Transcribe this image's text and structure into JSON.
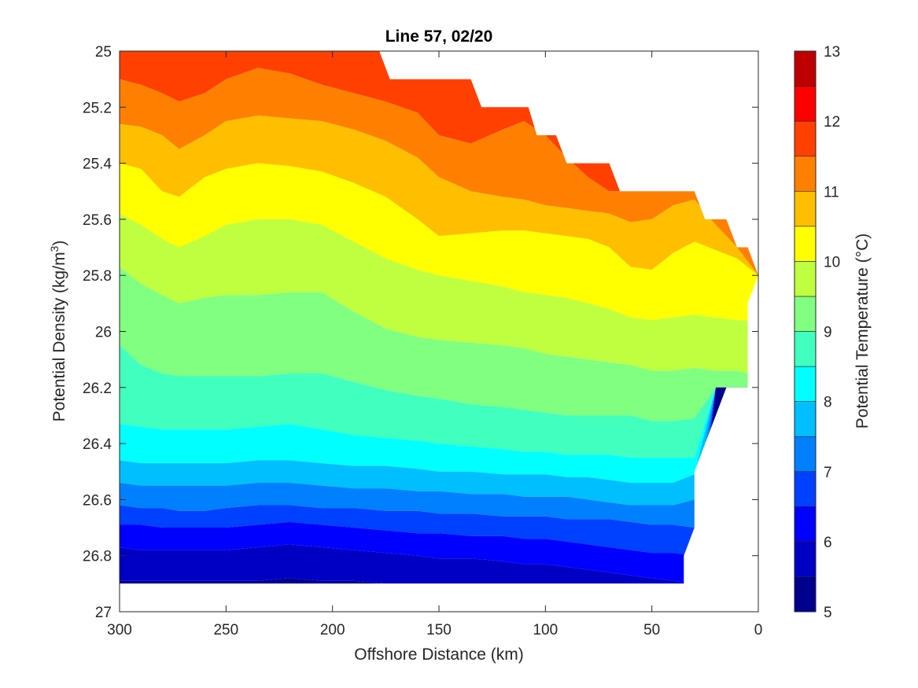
{
  "chart_data": {
    "type": "filled-contour",
    "title": "Line 57, 02/20",
    "xlabel": "Offshore Distance (km)",
    "ylabel_prefix": "Potential Density (kg/m",
    "ylabel_sup": "3",
    "ylabel_suffix": ")",
    "xlim": [
      300,
      0
    ],
    "ylim": [
      25,
      27
    ],
    "y_reversed": true,
    "xticks": [
      300,
      250,
      200,
      150,
      100,
      50,
      0
    ],
    "yticks": [
      25,
      25.2,
      25.4,
      25.6,
      25.8,
      26,
      26.2,
      26.4,
      26.6,
      26.8,
      27
    ],
    "ytick_labels": [
      "25",
      "25.2",
      "25.4",
      "25.6",
      "25.8",
      "26",
      "26.2",
      "26.4",
      "26.6",
      "26.8",
      "27"
    ],
    "grid": false,
    "x_stations": [
      300,
      290,
      280,
      272,
      260,
      250,
      235,
      220,
      205,
      190,
      175,
      160,
      150,
      135,
      120,
      110,
      100,
      90,
      80,
      70,
      60,
      50,
      40,
      30,
      20,
      10,
      5,
      0
    ],
    "contour_lines": [
      {
        "level": 12.0,
        "y": [
          25.0,
          25.0,
          25.0,
          25.0,
          25.0,
          25.0,
          25.0,
          25.0,
          25.0,
          25.0,
          25.0,
          25.0,
          25.0,
          25.0,
          25.0,
          25.0,
          25.0,
          25.0,
          25.0,
          25.0,
          25.0,
          25.0,
          25.0,
          25.0,
          25.0,
          25.0,
          25.0,
          25.0
        ]
      },
      {
        "level": 11.5,
        "y": [
          25.1,
          25.12,
          25.15,
          25.18,
          25.15,
          25.1,
          25.06,
          25.08,
          25.12,
          25.15,
          25.18,
          25.22,
          25.3,
          25.33,
          25.28,
          25.25,
          25.3,
          25.38,
          25.45,
          25.5,
          25.5,
          25.5,
          25.5,
          25.5,
          25.5,
          25.5,
          25.5,
          25.5
        ]
      },
      {
        "level": 11.0,
        "y": [
          25.26,
          25.27,
          25.3,
          25.35,
          25.3,
          25.25,
          25.23,
          25.24,
          25.25,
          25.28,
          25.32,
          25.38,
          25.45,
          25.5,
          25.52,
          25.53,
          25.55,
          25.56,
          25.57,
          25.58,
          25.61,
          25.6,
          25.55,
          25.53,
          25.62,
          25.7,
          25.75,
          25.8
        ]
      },
      {
        "level": 10.5,
        "y": [
          25.4,
          25.42,
          25.5,
          25.52,
          25.45,
          25.42,
          25.4,
          25.41,
          25.43,
          25.47,
          25.52,
          25.6,
          25.66,
          25.65,
          25.64,
          25.64,
          25.65,
          25.66,
          25.67,
          25.7,
          25.77,
          25.78,
          25.72,
          25.68,
          25.71,
          25.74,
          25.77,
          25.8
        ]
      },
      {
        "level": 10.0,
        "y": [
          25.58,
          25.62,
          25.67,
          25.7,
          25.66,
          25.62,
          25.6,
          25.6,
          25.62,
          25.68,
          25.74,
          25.78,
          25.8,
          25.82,
          25.84,
          25.86,
          25.87,
          25.88,
          25.9,
          25.92,
          25.95,
          25.96,
          25.95,
          25.94,
          25.95,
          25.96,
          25.96,
          25.8
        ]
      },
      {
        "level": 9.5,
        "y": [
          25.77,
          25.83,
          25.87,
          25.9,
          25.88,
          25.87,
          25.87,
          25.86,
          25.86,
          25.93,
          25.99,
          26.02,
          26.03,
          26.04,
          26.05,
          26.06,
          26.08,
          26.09,
          26.1,
          26.11,
          26.12,
          26.14,
          26.14,
          26.13,
          26.14,
          26.14,
          26.15,
          26.2
        ]
      },
      {
        "level": 9.0,
        "y": [
          26.05,
          26.12,
          26.15,
          26.16,
          26.16,
          26.16,
          26.16,
          26.15,
          26.15,
          26.18,
          26.21,
          26.23,
          26.24,
          26.26,
          26.27,
          26.28,
          26.29,
          26.3,
          26.3,
          26.3,
          26.3,
          26.32,
          26.32,
          26.31,
          26.2,
          26.2,
          26.2,
          26.2
        ]
      },
      {
        "level": 8.5,
        "y": [
          26.33,
          26.34,
          26.35,
          26.35,
          26.35,
          26.35,
          26.34,
          26.33,
          26.35,
          26.37,
          26.38,
          26.39,
          26.4,
          26.41,
          26.42,
          26.43,
          26.43,
          26.44,
          26.44,
          26.44,
          26.45,
          26.45,
          26.45,
          26.45,
          26.2,
          26.2,
          26.2,
          26.2
        ]
      },
      {
        "level": 8.0,
        "y": [
          26.46,
          26.47,
          26.47,
          26.47,
          26.47,
          26.47,
          26.46,
          26.46,
          26.47,
          26.48,
          26.48,
          26.49,
          26.5,
          26.5,
          26.51,
          26.51,
          26.51,
          26.52,
          26.52,
          26.53,
          26.54,
          26.54,
          26.54,
          26.51,
          26.2,
          26.2,
          26.2,
          26.2
        ]
      },
      {
        "level": 7.5,
        "y": [
          26.54,
          26.55,
          26.55,
          26.55,
          26.55,
          26.55,
          26.54,
          26.54,
          26.55,
          26.56,
          26.56,
          26.57,
          26.57,
          26.58,
          26.58,
          26.59,
          26.59,
          26.59,
          26.6,
          26.61,
          26.62,
          26.62,
          26.62,
          26.6,
          26.2,
          26.2,
          26.2,
          26.2
        ]
      },
      {
        "level": 7.0,
        "y": [
          26.62,
          26.63,
          26.63,
          26.64,
          26.64,
          26.63,
          26.62,
          26.62,
          26.63,
          26.63,
          26.64,
          26.64,
          26.65,
          26.65,
          26.66,
          26.66,
          26.66,
          26.67,
          26.67,
          26.67,
          26.68,
          26.69,
          26.69,
          26.7,
          26.2,
          26.2,
          26.2,
          26.2
        ]
      },
      {
        "level": 6.5,
        "y": [
          26.69,
          26.69,
          26.7,
          26.7,
          26.7,
          26.7,
          26.69,
          26.68,
          26.69,
          26.7,
          26.71,
          26.72,
          26.72,
          26.73,
          26.73,
          26.74,
          26.74,
          26.75,
          26.76,
          26.77,
          26.78,
          26.79,
          26.79,
          26.8,
          26.2,
          26.2,
          26.2,
          26.2
        ]
      },
      {
        "level": 6.0,
        "y": [
          26.77,
          26.78,
          26.78,
          26.78,
          26.78,
          26.78,
          26.77,
          26.76,
          26.77,
          26.78,
          26.79,
          26.8,
          26.81,
          26.81,
          26.82,
          26.83,
          26.83,
          26.84,
          26.85,
          26.86,
          26.87,
          26.88,
          26.89,
          26.9,
          26.2,
          26.2,
          26.2,
          26.2
        ]
      },
      {
        "level": 5.5,
        "y": [
          26.89,
          26.89,
          26.89,
          26.89,
          26.89,
          26.89,
          26.89,
          26.88,
          26.89,
          26.89,
          26.9,
          26.9,
          26.9,
          26.9,
          26.9,
          26.9,
          26.9,
          26.9,
          26.9,
          26.9,
          26.9,
          26.9,
          26.9,
          26.9,
          26.2,
          26.2,
          26.2,
          26.2
        ]
      }
    ],
    "data_top_boundary": [
      [
        300,
        25.0
      ],
      [
        178,
        25.0
      ],
      [
        173,
        25.1
      ],
      [
        135,
        25.1
      ],
      [
        130,
        25.2
      ],
      [
        108,
        25.2
      ],
      [
        104,
        25.3
      ],
      [
        95,
        25.3
      ],
      [
        90,
        25.4
      ],
      [
        70,
        25.4
      ],
      [
        65,
        25.5
      ],
      [
        30,
        25.5
      ],
      [
        25,
        25.6
      ],
      [
        15,
        25.6
      ],
      [
        10,
        25.7
      ],
      [
        5,
        25.7
      ],
      [
        0,
        25.8
      ]
    ],
    "data_right_boundary": [
      [
        0,
        25.8
      ],
      [
        5,
        25.9
      ],
      [
        5,
        26.2
      ],
      [
        15,
        26.2
      ],
      [
        20,
        26.3
      ],
      [
        30,
        26.5
      ],
      [
        30,
        26.7
      ],
      [
        35,
        26.8
      ],
      [
        35,
        26.9
      ]
    ],
    "data_bottom": 26.9,
    "colorbar": {
      "label": "Potential Temperature (°C)",
      "ticks": [
        5,
        6,
        7,
        8,
        9,
        10,
        11,
        12,
        13
      ],
      "range": [
        5,
        13
      ],
      "bands": [
        {
          "from": 5.0,
          "to": 5.5,
          "color": "#00008f"
        },
        {
          "from": 5.5,
          "to": 6.0,
          "color": "#0000c4"
        },
        {
          "from": 6.0,
          "to": 6.5,
          "color": "#0000ff"
        },
        {
          "from": 6.5,
          "to": 7.0,
          "color": "#0040ff"
        },
        {
          "from": 7.0,
          "to": 7.5,
          "color": "#0080ff"
        },
        {
          "from": 7.5,
          "to": 8.0,
          "color": "#00bfff"
        },
        {
          "from": 8.0,
          "to": 8.5,
          "color": "#00ffff"
        },
        {
          "from": 8.5,
          "to": 9.0,
          "color": "#40ffbf"
        },
        {
          "from": 9.0,
          "to": 9.5,
          "color": "#80ff80"
        },
        {
          "from": 9.5,
          "to": 10.0,
          "color": "#bfff40"
        },
        {
          "from": 10.0,
          "to": 10.5,
          "color": "#ffff00"
        },
        {
          "from": 10.5,
          "to": 11.0,
          "color": "#ffbf00"
        },
        {
          "from": 11.0,
          "to": 11.5,
          "color": "#ff8000"
        },
        {
          "from": 11.5,
          "to": 12.0,
          "color": "#ff4000"
        },
        {
          "from": 12.0,
          "to": 12.5,
          "color": "#ff0000"
        },
        {
          "from": 12.5,
          "to": 13.0,
          "color": "#bf0000"
        }
      ]
    }
  }
}
